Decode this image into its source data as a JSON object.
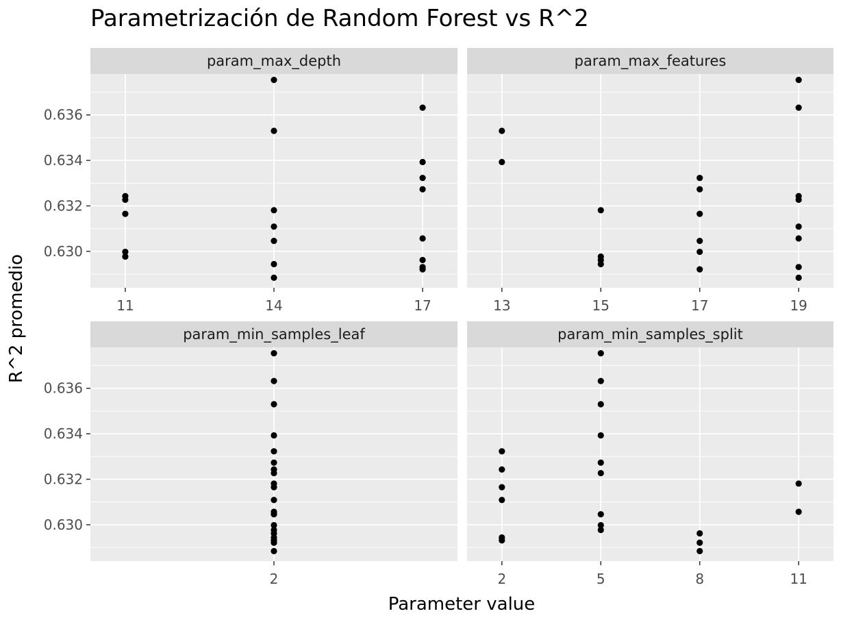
{
  "chart_data": {
    "type": "scatter",
    "title": "Parametrización de Random Forest vs R^2",
    "xlabel": "Parameter value",
    "ylabel": "R^2 promedio",
    "ylim": [
      0.6284,
      0.6378
    ],
    "y_ticks": [
      "0.630",
      "0.632",
      "0.634",
      "0.636"
    ],
    "grid": true,
    "facets": [
      {
        "name": "param_max_depth",
        "x_ticks": [
          "11",
          "14",
          "17"
        ],
        "points": [
          {
            "x": "11",
            "y": 0.63243
          },
          {
            "x": "11",
            "y": 0.63227
          },
          {
            "x": "11",
            "y": 0.63165
          },
          {
            "x": "11",
            "y": 0.62998
          },
          {
            "x": "11",
            "y": 0.62977
          },
          {
            "x": "14",
            "y": 0.63754
          },
          {
            "x": "14",
            "y": 0.6353
          },
          {
            "x": "14",
            "y": 0.63181
          },
          {
            "x": "14",
            "y": 0.63109
          },
          {
            "x": "14",
            "y": 0.63046
          },
          {
            "x": "14",
            "y": 0.62944
          },
          {
            "x": "14",
            "y": 0.62884
          },
          {
            "x": "17",
            "y": 0.63632
          },
          {
            "x": "17",
            "y": 0.63393
          },
          {
            "x": "17",
            "y": 0.63323
          },
          {
            "x": "17",
            "y": 0.63273
          },
          {
            "x": "17",
            "y": 0.63057
          },
          {
            "x": "17",
            "y": 0.62962
          },
          {
            "x": "17",
            "y": 0.62931
          },
          {
            "x": "17",
            "y": 0.62921
          }
        ]
      },
      {
        "name": "param_max_features",
        "x_ticks": [
          "13",
          "15",
          "17",
          "19"
        ],
        "points": [
          {
            "x": "13",
            "y": 0.6353
          },
          {
            "x": "13",
            "y": 0.63393
          },
          {
            "x": "15",
            "y": 0.63181
          },
          {
            "x": "15",
            "y": 0.62977
          },
          {
            "x": "15",
            "y": 0.62962
          },
          {
            "x": "15",
            "y": 0.62944
          },
          {
            "x": "17",
            "y": 0.63323
          },
          {
            "x": "17",
            "y": 0.63273
          },
          {
            "x": "17",
            "y": 0.63165
          },
          {
            "x": "17",
            "y": 0.63046
          },
          {
            "x": "17",
            "y": 0.62998
          },
          {
            "x": "17",
            "y": 0.62921
          },
          {
            "x": "19",
            "y": 0.63754
          },
          {
            "x": "19",
            "y": 0.63632
          },
          {
            "x": "19",
            "y": 0.63243
          },
          {
            "x": "19",
            "y": 0.63227
          },
          {
            "x": "19",
            "y": 0.63109
          },
          {
            "x": "19",
            "y": 0.63057
          },
          {
            "x": "19",
            "y": 0.62931
          },
          {
            "x": "19",
            "y": 0.62884
          }
        ]
      },
      {
        "name": "param_min_samples_leaf",
        "x_ticks": [
          "2"
        ],
        "points": [
          {
            "x": "2",
            "y": 0.63754
          },
          {
            "x": "2",
            "y": 0.63632
          },
          {
            "x": "2",
            "y": 0.6353
          },
          {
            "x": "2",
            "y": 0.63393
          },
          {
            "x": "2",
            "y": 0.63323
          },
          {
            "x": "2",
            "y": 0.63273
          },
          {
            "x": "2",
            "y": 0.63243
          },
          {
            "x": "2",
            "y": 0.63227
          },
          {
            "x": "2",
            "y": 0.63181
          },
          {
            "x": "2",
            "y": 0.63165
          },
          {
            "x": "2",
            "y": 0.63109
          },
          {
            "x": "2",
            "y": 0.63057
          },
          {
            "x": "2",
            "y": 0.63046
          },
          {
            "x": "2",
            "y": 0.62998
          },
          {
            "x": "2",
            "y": 0.62977
          },
          {
            "x": "2",
            "y": 0.62962
          },
          {
            "x": "2",
            "y": 0.62944
          },
          {
            "x": "2",
            "y": 0.62931
          },
          {
            "x": "2",
            "y": 0.62921
          },
          {
            "x": "2",
            "y": 0.62884
          }
        ]
      },
      {
        "name": "param_min_samples_split",
        "x_ticks": [
          "2",
          "5",
          "8",
          "11"
        ],
        "points": [
          {
            "x": "2",
            "y": 0.63323
          },
          {
            "x": "2",
            "y": 0.63243
          },
          {
            "x": "2",
            "y": 0.63165
          },
          {
            "x": "2",
            "y": 0.63109
          },
          {
            "x": "2",
            "y": 0.62944
          },
          {
            "x": "2",
            "y": 0.62931
          },
          {
            "x": "5",
            "y": 0.63754
          },
          {
            "x": "5",
            "y": 0.63632
          },
          {
            "x": "5",
            "y": 0.6353
          },
          {
            "x": "5",
            "y": 0.63393
          },
          {
            "x": "5",
            "y": 0.63273
          },
          {
            "x": "5",
            "y": 0.63227
          },
          {
            "x": "5",
            "y": 0.63046
          },
          {
            "x": "5",
            "y": 0.62998
          },
          {
            "x": "5",
            "y": 0.62977
          },
          {
            "x": "8",
            "y": 0.62962
          },
          {
            "x": "8",
            "y": 0.62921
          },
          {
            "x": "8",
            "y": 0.62884
          },
          {
            "x": "11",
            "y": 0.63181
          },
          {
            "x": "11",
            "y": 0.63057
          }
        ]
      }
    ]
  },
  "colors": {
    "panel_bg": "#ebebeb",
    "strip_bg": "#d9d9d9",
    "grid_major": "#ffffff",
    "point": "#000000"
  }
}
